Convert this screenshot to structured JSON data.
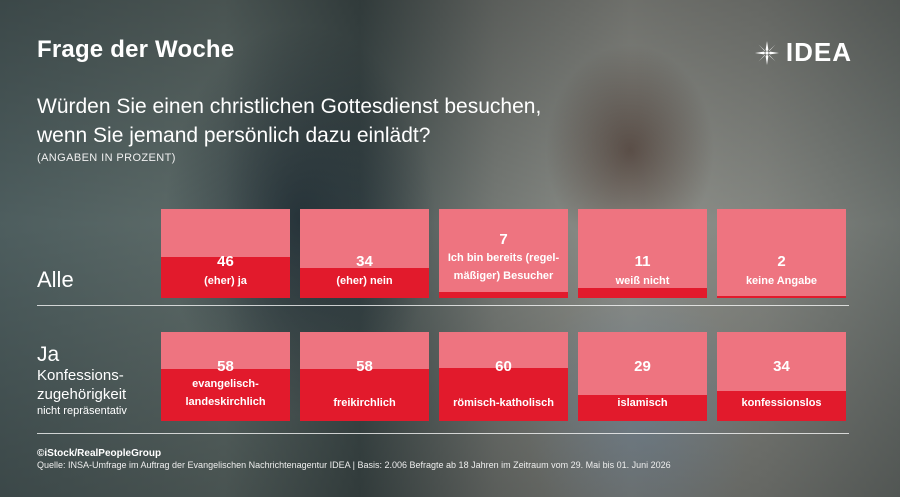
{
  "header": {
    "title": "Frage der Woche",
    "logo_text": "IDEA",
    "logo_icon": "idea-burst-icon"
  },
  "question": {
    "line1": "Würden Sie einen christlichen Gottesdienst besuchen,",
    "line2": "wenn Sie jemand persönlich dazu einlädt?",
    "note": "(ANGABEN IN PROZENT)"
  },
  "rows": {
    "all": {
      "label": "Alle"
    },
    "ja": {
      "label": "Ja",
      "sub1": "Konfessions-",
      "sub2": "zugehörigkeit",
      "note": "nicht repräsentativ"
    }
  },
  "chart_data": {
    "type": "bar",
    "value_unit": "percent",
    "colors": {
      "bar_fill": "#e21a2c",
      "tile_background": "#ee7480"
    },
    "groups": [
      {
        "name": "Alle",
        "items": [
          {
            "category": "(eher) ja",
            "value": 46
          },
          {
            "category": "(eher) nein",
            "value": 34
          },
          {
            "category": "Ich bin bereits (regel-mäßiger) Besucher",
            "value": 7
          },
          {
            "category": "weiß nicht",
            "value": 11
          },
          {
            "category": "keine Angabe",
            "value": 2
          }
        ]
      },
      {
        "name": "Ja Konfessions-zugehörigkeit",
        "items": [
          {
            "category": "evangelisch-landeskirchlich",
            "value": 58
          },
          {
            "category": "freikirchlich",
            "value": 58
          },
          {
            "category": "römisch-katholisch",
            "value": 60
          },
          {
            "category": "islamisch",
            "value": 29
          },
          {
            "category": "konfessionslos",
            "value": 34
          }
        ]
      }
    ]
  },
  "footer": {
    "credit": "©iStock/RealPeopleGroup",
    "source": "Quelle: INSA-Umfrage im Auftrag der Evangelischen Nachrichtenagentur IDEA | Basis: 2.006 Befragte ab 18 Jahren im Zeitraum vom 29. Mai bis 01. Juni 2026"
  }
}
